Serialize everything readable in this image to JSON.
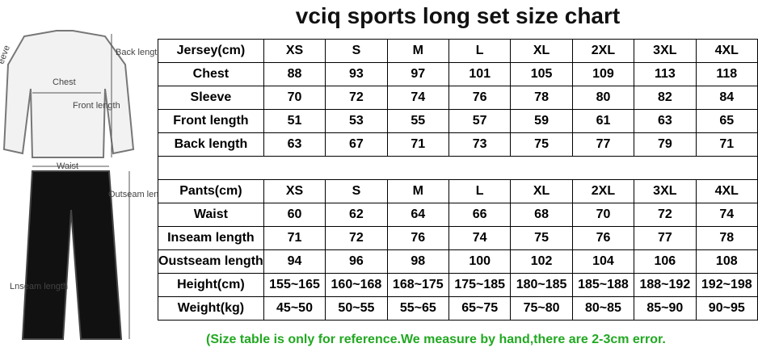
{
  "title": "vciq sports long set size chart",
  "diagram_labels": {
    "sleeve": "eeve",
    "back_length": "Back length",
    "chest": "Chest",
    "front_length": "Front length",
    "waist": "Waist",
    "outseam_length": "Outseam length",
    "inseam_length": "Lnseam length"
  },
  "jersey_table": {
    "header": [
      "Jersey(cm)",
      "XS",
      "S",
      "M",
      "L",
      "XL",
      "2XL",
      "3XL",
      "4XL"
    ],
    "rows": [
      [
        "Chest",
        88,
        93,
        97,
        101,
        105,
        109,
        113,
        118
      ],
      [
        "Sleeve",
        70,
        72,
        74,
        76,
        78,
        80,
        82,
        84
      ],
      [
        "Front length",
        51,
        53,
        55,
        57,
        59,
        61,
        63,
        65
      ],
      [
        "Back length",
        63,
        67,
        71,
        73,
        75,
        77,
        79,
        71
      ]
    ]
  },
  "pants_table": {
    "header": [
      "Pants(cm)",
      "XS",
      "S",
      "M",
      "L",
      "XL",
      "2XL",
      "3XL",
      "4XL"
    ],
    "rows": [
      [
        "Waist",
        60,
        62,
        64,
        66,
        68,
        70,
        72,
        74
      ],
      [
        "Inseam length",
        71,
        72,
        76,
        74,
        75,
        76,
        77,
        78
      ],
      [
        "Oustseam length",
        94,
        96,
        98,
        100,
        102,
        104,
        106,
        108
      ],
      [
        "Height(cm)",
        "155~165",
        "160~168",
        "168~175",
        "175~185",
        "180~185",
        "185~188",
        "188~192",
        "192~198"
      ],
      [
        "Weight(kg)",
        "45~50",
        "50~55",
        "55~65",
        "65~75",
        "75~80",
        "80~85",
        "85~90",
        "90~95"
      ]
    ]
  },
  "note": "(Size table is only for reference.We measure by hand,there are 2-3cm error."
}
